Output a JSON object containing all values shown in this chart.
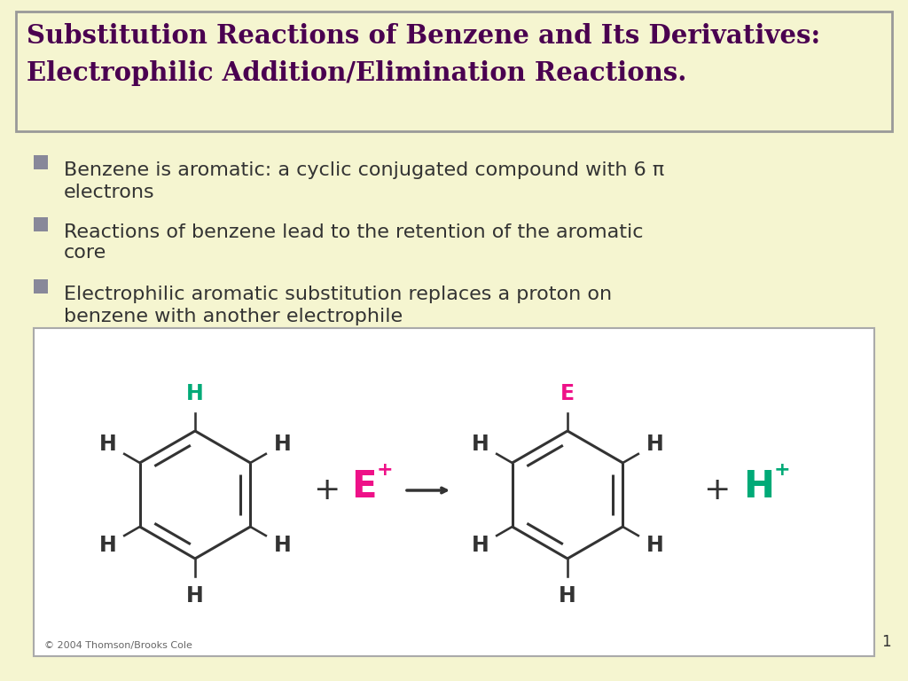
{
  "bg_color": "#f5f5d0",
  "title_line1": "Substitution Reactions of Benzene and Its Derivatives:",
  "title_line2": "Electrophilic Addition/Elimination Reactions.",
  "title_color": "#4a0050",
  "title_box_edge": "#888888",
  "bullet_color": "#333333",
  "bullet_square_color": "#888899",
  "bullet_items": [
    [
      "Benzene is aromatic: a cyclic conjugated compound with 6 π",
      "electrons"
    ],
    [
      "Reactions of benzene lead to the retention of the aromatic",
      "core"
    ],
    [
      "Electrophilic aromatic substitution replaces a proton on",
      "benzene with another electrophile"
    ]
  ],
  "diagram_bg": "#ffffff",
  "green_color": "#00aa77",
  "pink_color": "#ee1188",
  "dark_color": "#333333",
  "copyright": "© 2004 Thomson/Brooks Cole",
  "page_num": "1"
}
